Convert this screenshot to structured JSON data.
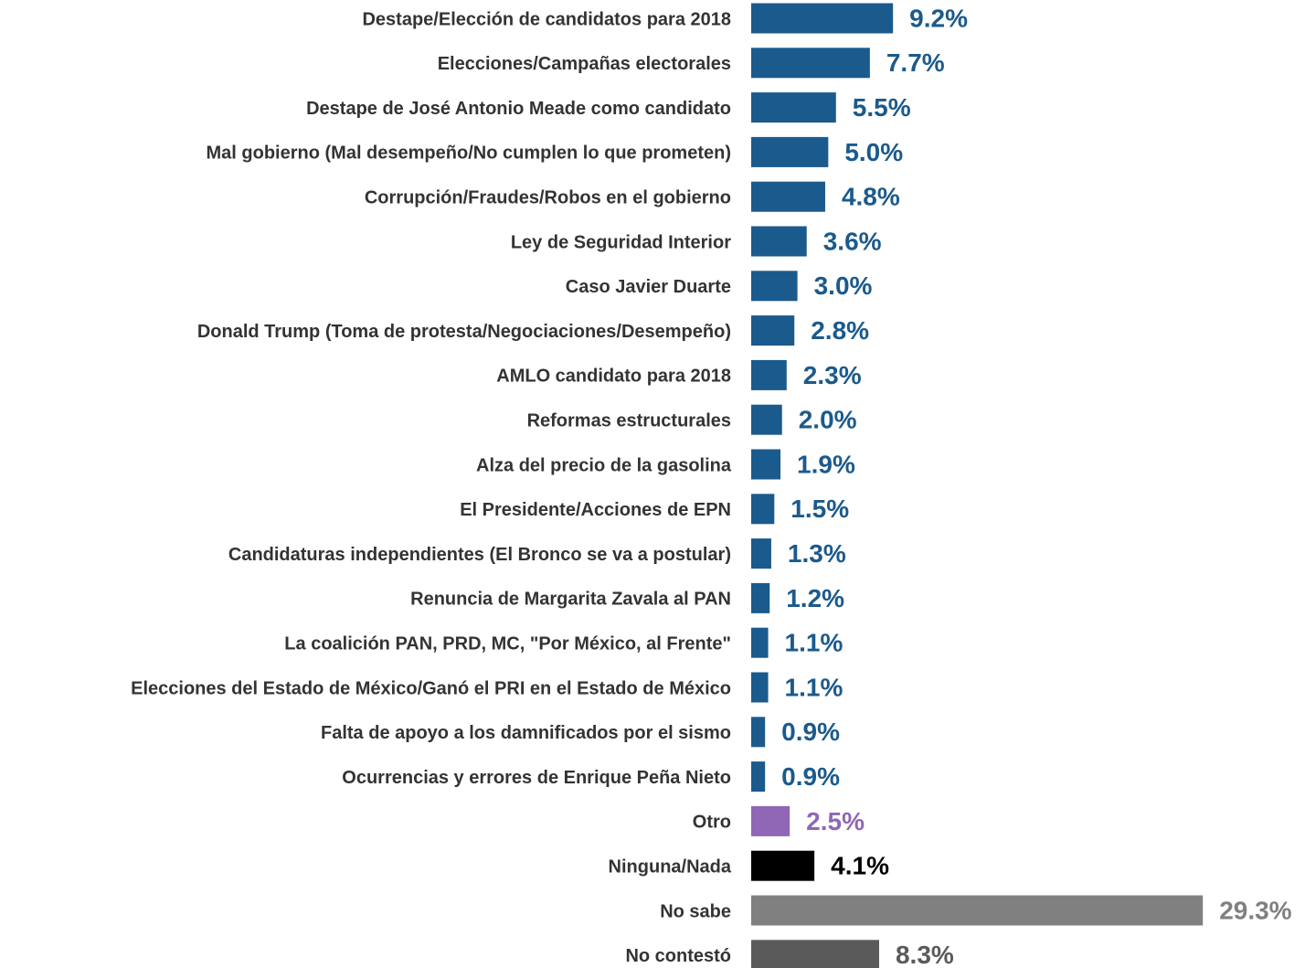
{
  "chart_data": {
    "type": "bar",
    "orientation": "horizontal",
    "categories": [
      "Destape/Elección de candidatos para 2018",
      "Elecciones/Campañas electorales",
      "Destape de José Antonio Meade como candidato",
      "Mal gobierno (Mal desempeño/No cumplen lo que prometen)",
      "Corrupción/Fraudes/Robos en el gobierno",
      "Ley de Seguridad Interior",
      "Caso Javier Duarte",
      "Donald Trump (Toma de protesta/Negociaciones/Desempeño)",
      "AMLO candidato para 2018",
      "Reformas estructurales",
      "Alza del precio de la gasolina",
      "El Presidente/Acciones de EPN",
      "Candidaturas independientes (El Bronco se va a postular)",
      "Renuncia de Margarita Zavala al PAN",
      "La coalición PAN, PRD, MC, \"Por México, al Frente\"",
      "Elecciones del Estado de México/Ganó el PRI en el Estado de México",
      "Falta de apoyo a los damnificados por el sismo",
      "Ocurrencias y errores de Enrique Peña Nieto",
      "Otro",
      "Ninguna/Nada",
      "No sabe",
      "No contestó"
    ],
    "values": [
      9.2,
      7.7,
      5.5,
      5.0,
      4.8,
      3.6,
      3.0,
      2.8,
      2.3,
      2.0,
      1.9,
      1.5,
      1.3,
      1.2,
      1.1,
      1.1,
      0.9,
      0.9,
      2.5,
      4.1,
      29.3,
      8.3
    ],
    "value_labels": [
      "9.2%",
      "7.7%",
      "5.5%",
      "5.0%",
      "4.8%",
      "3.6%",
      "3.0%",
      "2.8%",
      "2.3%",
      "2.0%",
      "1.9%",
      "1.5%",
      "1.3%",
      "1.2%",
      "1.1%",
      "1.1%",
      "0.9%",
      "0.9%",
      "2.5%",
      "4.1%",
      "29.3%",
      "8.3%"
    ],
    "colors": [
      "#1b5a8c",
      "#1b5a8c",
      "#1b5a8c",
      "#1b5a8c",
      "#1b5a8c",
      "#1b5a8c",
      "#1b5a8c",
      "#1b5a8c",
      "#1b5a8c",
      "#1b5a8c",
      "#1b5a8c",
      "#1b5a8c",
      "#1b5a8c",
      "#1b5a8c",
      "#1b5a8c",
      "#1b5a8c",
      "#1b5a8c",
      "#1b5a8c",
      "#8f67b5",
      "#000000",
      "#808080",
      "#5a5a5a"
    ],
    "xlim": [
      0,
      30
    ]
  }
}
